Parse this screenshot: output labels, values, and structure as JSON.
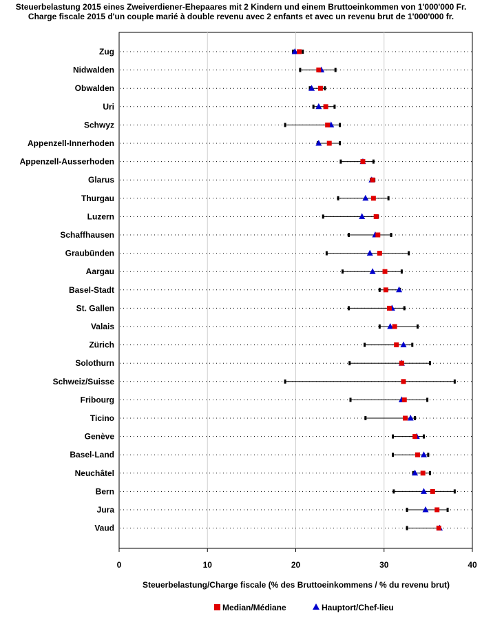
{
  "chart_data": {
    "type": "range-dot",
    "title_lines": [
      "Steuerbelastung 2015 eines Zweiverdiener-Ehepaares mit 2 Kindern und einem Bruttoeinkommen von 1'000'000 Fr.",
      "Charge fiscale 2015 d'un couple marié à double revenu avec 2 enfants et avec un revenu brut de 1'000'000 fr."
    ],
    "xlabel": "Steuerbelastung/Charge fiscale (% des Bruttoeinkommens / % du revenu brut)",
    "xlim": [
      0,
      40
    ],
    "xticks": [
      0,
      10,
      20,
      30,
      40
    ],
    "gridlines_x": [
      10,
      20,
      30
    ],
    "legend": {
      "position": "bottom",
      "entries": [
        "Median/Médiane",
        "Hauptort/Chef-lieu"
      ]
    },
    "series_colors": {
      "median": "#e00000",
      "capital": "#0000cc",
      "range": "#000000"
    },
    "categories": [
      "Zug",
      "Nidwalden",
      "Obwalden",
      "Uri",
      "Schwyz",
      "Appenzell-Innerhoden",
      "Appenzell-Ausserhoden",
      "Glarus",
      "Thurgau",
      "Luzern",
      "Schaffhausen",
      "Graubünden",
      "Aargau",
      "Basel-Stadt",
      "St. Gallen",
      "Valais",
      "Zürich",
      "Solothurn",
      "Schweiz/Suisse",
      "Fribourg",
      "Ticino",
      "Genève",
      "Basel-Land",
      "Neuchâtel",
      "Bern",
      "Jura",
      "Vaud"
    ],
    "min": [
      19.7,
      20.5,
      21.6,
      22.0,
      18.8,
      22.5,
      25.1,
      28.5,
      24.8,
      23.1,
      26.0,
      23.5,
      25.3,
      29.5,
      26.0,
      29.5,
      27.8,
      26.1,
      18.8,
      26.2,
      27.9,
      31.0,
      31.0,
      33.3,
      31.1,
      32.6,
      32.6
    ],
    "max": [
      20.8,
      24.5,
      23.3,
      24.4,
      25.0,
      25.0,
      28.8,
      28.9,
      30.5,
      29.3,
      30.8,
      32.8,
      32.0,
      31.8,
      32.3,
      33.8,
      33.2,
      35.2,
      38.0,
      34.9,
      33.5,
      34.5,
      35.0,
      35.2,
      38.0,
      37.2,
      36.3
    ],
    "median": [
      20.4,
      22.6,
      22.8,
      23.4,
      23.6,
      23.8,
      27.6,
      28.7,
      28.8,
      29.1,
      29.3,
      29.5,
      30.1,
      30.2,
      30.6,
      31.2,
      31.4,
      32.0,
      32.2,
      32.3,
      32.4,
      33.5,
      33.8,
      34.4,
      35.5,
      36.0,
      36.2
    ],
    "capital": [
      19.9,
      22.9,
      21.8,
      22.6,
      24.0,
      22.6,
      27.6,
      28.6,
      27.9,
      27.5,
      29.0,
      28.4,
      28.7,
      31.7,
      30.9,
      30.7,
      32.2,
      32.0,
      null,
      32.0,
      33.0,
      33.7,
      34.5,
      33.5,
      34.5,
      34.7,
      36.3
    ]
  }
}
